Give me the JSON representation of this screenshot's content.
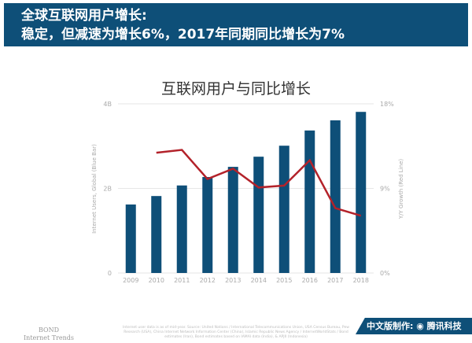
{
  "header": {
    "line1": "全球互联网用户增长:",
    "line2": "稳定，但减速为增长6%，2017年同期同比增长为7%"
  },
  "chart_data": {
    "type": "bar+line",
    "title": "互联网用户与同比增长",
    "categories": [
      "2009",
      "2010",
      "2011",
      "2012",
      "2013",
      "2014",
      "2015",
      "2016",
      "2017",
      "2018"
    ],
    "series": [
      {
        "name": "Internet Users, Global (Blue Bar)",
        "type": "bar",
        "axis": "left",
        "color": "#0e4f78",
        "values": [
          1.62,
          1.82,
          2.07,
          2.27,
          2.51,
          2.75,
          3.01,
          3.37,
          3.61,
          3.81
        ]
      },
      {
        "name": "Y/Y Growth (Red Line)",
        "type": "line",
        "axis": "right",
        "color": "#b3222a",
        "values": [
          null,
          12.8,
          13.1,
          10.0,
          11.1,
          9.1,
          9.3,
          12.0,
          6.9,
          6.1
        ]
      }
    ],
    "ylabel": "Internet Users, Global (Blue Bar)",
    "y2label": "Y/Y Growth (Red Line)",
    "ylim": [
      0,
      4
    ],
    "yticks": [
      "0",
      "2B",
      "4B"
    ],
    "y2lim": [
      0,
      18
    ],
    "y2ticks": [
      "0%",
      "9%",
      "18%"
    ],
    "grid": true
  },
  "footer": {
    "bond1": "BOND",
    "bond2": "Internet Trends",
    "source": "Internet user data is as of mid-year. Source: United Nations / International Telecommunications Union, USA Census Bureau, Pew Research (USA), China Internet Network Information Center (China), Islamic Republic News Agency / InternetWorldStats / Bond estimates (Iran), Bond estimates based on IAMAI data (India), & APJII (Indonesia)",
    "badge": "中文版制作: ◉ 腾讯科技"
  }
}
